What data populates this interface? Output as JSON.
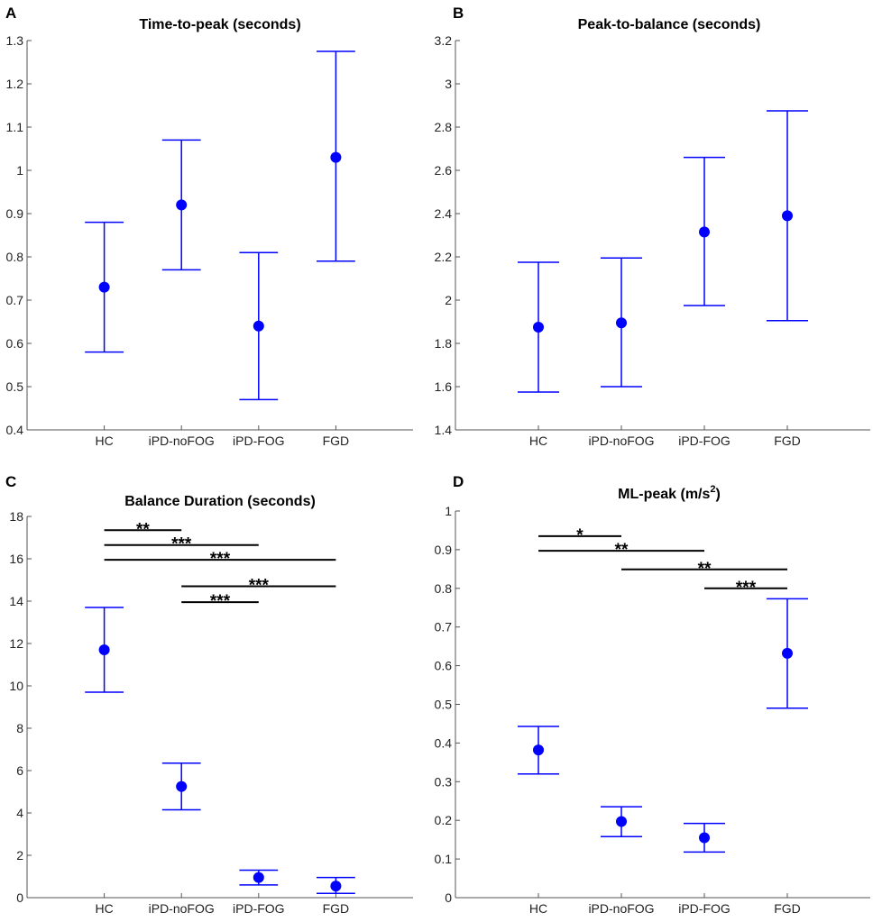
{
  "chart_data": [
    {
      "panel": "A",
      "type": "scatter",
      "style": "error-bar",
      "title": "Time-to-peak (seconds)",
      "xlabel": "",
      "ylabel": "",
      "categories": [
        "HC",
        "iPD-noFOG",
        "iPD-FOG",
        "FGD"
      ],
      "series": [
        {
          "name": "mean",
          "values": [
            0.73,
            0.92,
            0.64,
            1.03
          ]
        },
        {
          "name": "lower",
          "values": [
            0.58,
            0.77,
            0.47,
            0.79
          ]
        },
        {
          "name": "upper",
          "values": [
            0.88,
            1.07,
            0.81,
            1.275
          ]
        }
      ],
      "ylim": [
        0.4,
        1.3
      ],
      "yticks": [
        "0.4",
        "0.5",
        "0.6",
        "0.7",
        "0.8",
        "0.9",
        "1",
        "1.1",
        "1.2",
        "1.3"
      ],
      "significance": [],
      "color": "#0000ff"
    },
    {
      "panel": "B",
      "type": "scatter",
      "style": "error-bar",
      "title": "Peak-to-balance (seconds)",
      "xlabel": "",
      "ylabel": "",
      "categories": [
        "HC",
        "iPD-noFOG",
        "iPD-FOG",
        "FGD"
      ],
      "series": [
        {
          "name": "mean",
          "values": [
            1.875,
            1.895,
            2.315,
            2.39
          ]
        },
        {
          "name": "lower",
          "values": [
            1.575,
            1.6,
            1.975,
            1.905
          ]
        },
        {
          "name": "upper",
          "values": [
            2.175,
            2.195,
            2.66,
            2.875
          ]
        }
      ],
      "ylim": [
        1.4,
        3.2
      ],
      "yticks": [
        "1.4",
        "1.6",
        "1.8",
        "2",
        "2.2",
        "2.4",
        "2.6",
        "2.8",
        "3",
        "3.2"
      ],
      "significance": [],
      "color": "#0000ff"
    },
    {
      "panel": "C",
      "type": "scatter",
      "style": "error-bar",
      "title": "Balance Duration (seconds)",
      "xlabel": "",
      "ylabel": "",
      "categories": [
        "HC",
        "iPD-noFOG",
        "iPD-FOG",
        "FGD"
      ],
      "series": [
        {
          "name": "mean",
          "values": [
            11.7,
            5.25,
            0.95,
            0.55
          ]
        },
        {
          "name": "lower",
          "values": [
            9.7,
            4.15,
            0.6,
            0.2
          ]
        },
        {
          "name": "upper",
          "values": [
            13.7,
            6.35,
            1.3,
            0.95
          ]
        }
      ],
      "ylim": [
        0,
        18
      ],
      "yticks": [
        "0",
        "2",
        "4",
        "6",
        "8",
        "10",
        "12",
        "14",
        "16",
        "18"
      ],
      "significance": [
        {
          "from": 0,
          "to": 1,
          "y": 17.35,
          "label": "**"
        },
        {
          "from": 0,
          "to": 2,
          "y": 16.65,
          "label": "***"
        },
        {
          "from": 0,
          "to": 3,
          "y": 15.95,
          "label": "***"
        },
        {
          "from": 1,
          "to": 3,
          "y": 14.7,
          "label": "***"
        },
        {
          "from": 1,
          "to": 2,
          "y": 13.95,
          "label": "***"
        }
      ],
      "color": "#0000ff"
    },
    {
      "panel": "D",
      "type": "scatter",
      "style": "error-bar",
      "title": "ML-peak (m/s",
      "title_superscript": "2",
      "title_suffix": ")",
      "xlabel": "",
      "ylabel": "",
      "categories": [
        "HC",
        "iPD-noFOG",
        "iPD-FOG",
        "FGD"
      ],
      "series": [
        {
          "name": "mean",
          "values": [
            0.382,
            0.197,
            0.155,
            0.632
          ]
        },
        {
          "name": "lower",
          "values": [
            0.32,
            0.158,
            0.118,
            0.49
          ]
        },
        {
          "name": "upper",
          "values": [
            0.443,
            0.235,
            0.192,
            0.773
          ]
        }
      ],
      "ylim": [
        0,
        1
      ],
      "yticks": [
        "0",
        "0.1",
        "0.2",
        "0.3",
        "0.4",
        "0.5",
        "0.6",
        "0.7",
        "0.8",
        "0.9",
        "1"
      ],
      "significance": [
        {
          "from": 0,
          "to": 1,
          "y": 0.935,
          "label": "*"
        },
        {
          "from": 0,
          "to": 2,
          "y": 0.897,
          "label": "**"
        },
        {
          "from": 1,
          "to": 3,
          "y": 0.849,
          "label": "**"
        },
        {
          "from": 2,
          "to": 3,
          "y": 0.8,
          "label": "***"
        }
      ],
      "color": "#0000ff"
    }
  ]
}
